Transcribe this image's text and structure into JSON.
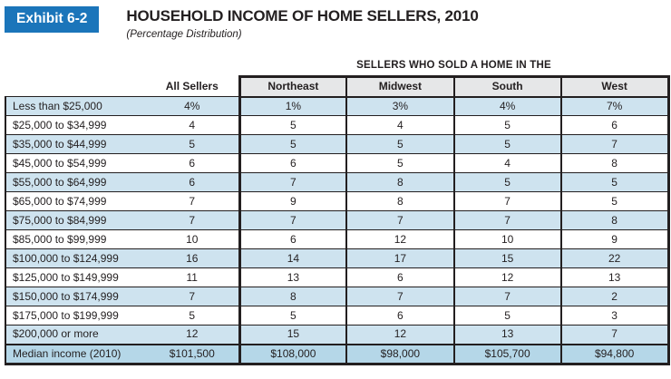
{
  "header": {
    "exhibit_label": "Exhibit 6-2",
    "title": "HOUSEHOLD INCOME OF HOME SELLERS, 2010",
    "subtitle": "(Percentage Distribution)"
  },
  "table": {
    "group_header": "SELLERS WHO SOLD A HOME IN THE",
    "columns": [
      "All Sellers",
      "Northeast",
      "Midwest",
      "South",
      "West"
    ],
    "rows": [
      {
        "label": "Less than $25,000",
        "values": [
          "4%",
          "1%",
          "3%",
          "4%",
          "7%"
        ]
      },
      {
        "label": "$25,000 to $34,999",
        "values": [
          "4",
          "5",
          "4",
          "5",
          "6"
        ]
      },
      {
        "label": "$35,000 to $44,999",
        "values": [
          "5",
          "5",
          "5",
          "5",
          "7"
        ]
      },
      {
        "label": "$45,000 to $54,999",
        "values": [
          "6",
          "6",
          "5",
          "4",
          "8"
        ]
      },
      {
        "label": "$55,000 to $64,999",
        "values": [
          "6",
          "7",
          "8",
          "5",
          "5"
        ]
      },
      {
        "label": "$65,000 to $74,999",
        "values": [
          "7",
          "9",
          "8",
          "7",
          "5"
        ]
      },
      {
        "label": "$75,000 to $84,999",
        "values": [
          "7",
          "7",
          "7",
          "7",
          "8"
        ]
      },
      {
        "label": "$85,000 to $99,999",
        "values": [
          "10",
          "6",
          "12",
          "10",
          "9"
        ]
      },
      {
        "label": "$100,000 to $124,999",
        "values": [
          "16",
          "14",
          "17",
          "15",
          "22"
        ]
      },
      {
        "label": "$125,000 to $149,999",
        "values": [
          "11",
          "13",
          "6",
          "12",
          "13"
        ]
      },
      {
        "label": "$150,000 to $174,999",
        "values": [
          "7",
          "8",
          "7",
          "7",
          "2"
        ]
      },
      {
        "label": "$175,000 to $199,999",
        "values": [
          "5",
          "5",
          "6",
          "5",
          "3"
        ]
      },
      {
        "label": "$200,000 or more",
        "values": [
          "12",
          "15",
          "12",
          "13",
          "7"
        ]
      }
    ],
    "median_row": {
      "label": "Median income (2010)",
      "values": [
        "$101,500",
        "$108,000",
        "$98,000",
        "$105,700",
        "$94,800"
      ]
    }
  },
  "colors": {
    "accent_blue": "#1b75ba",
    "row_alt_blue": "#cee3ef",
    "median_row_blue": "#b5d7e8",
    "header_gray": "#e6e7e8",
    "border_black": "#231f20"
  }
}
